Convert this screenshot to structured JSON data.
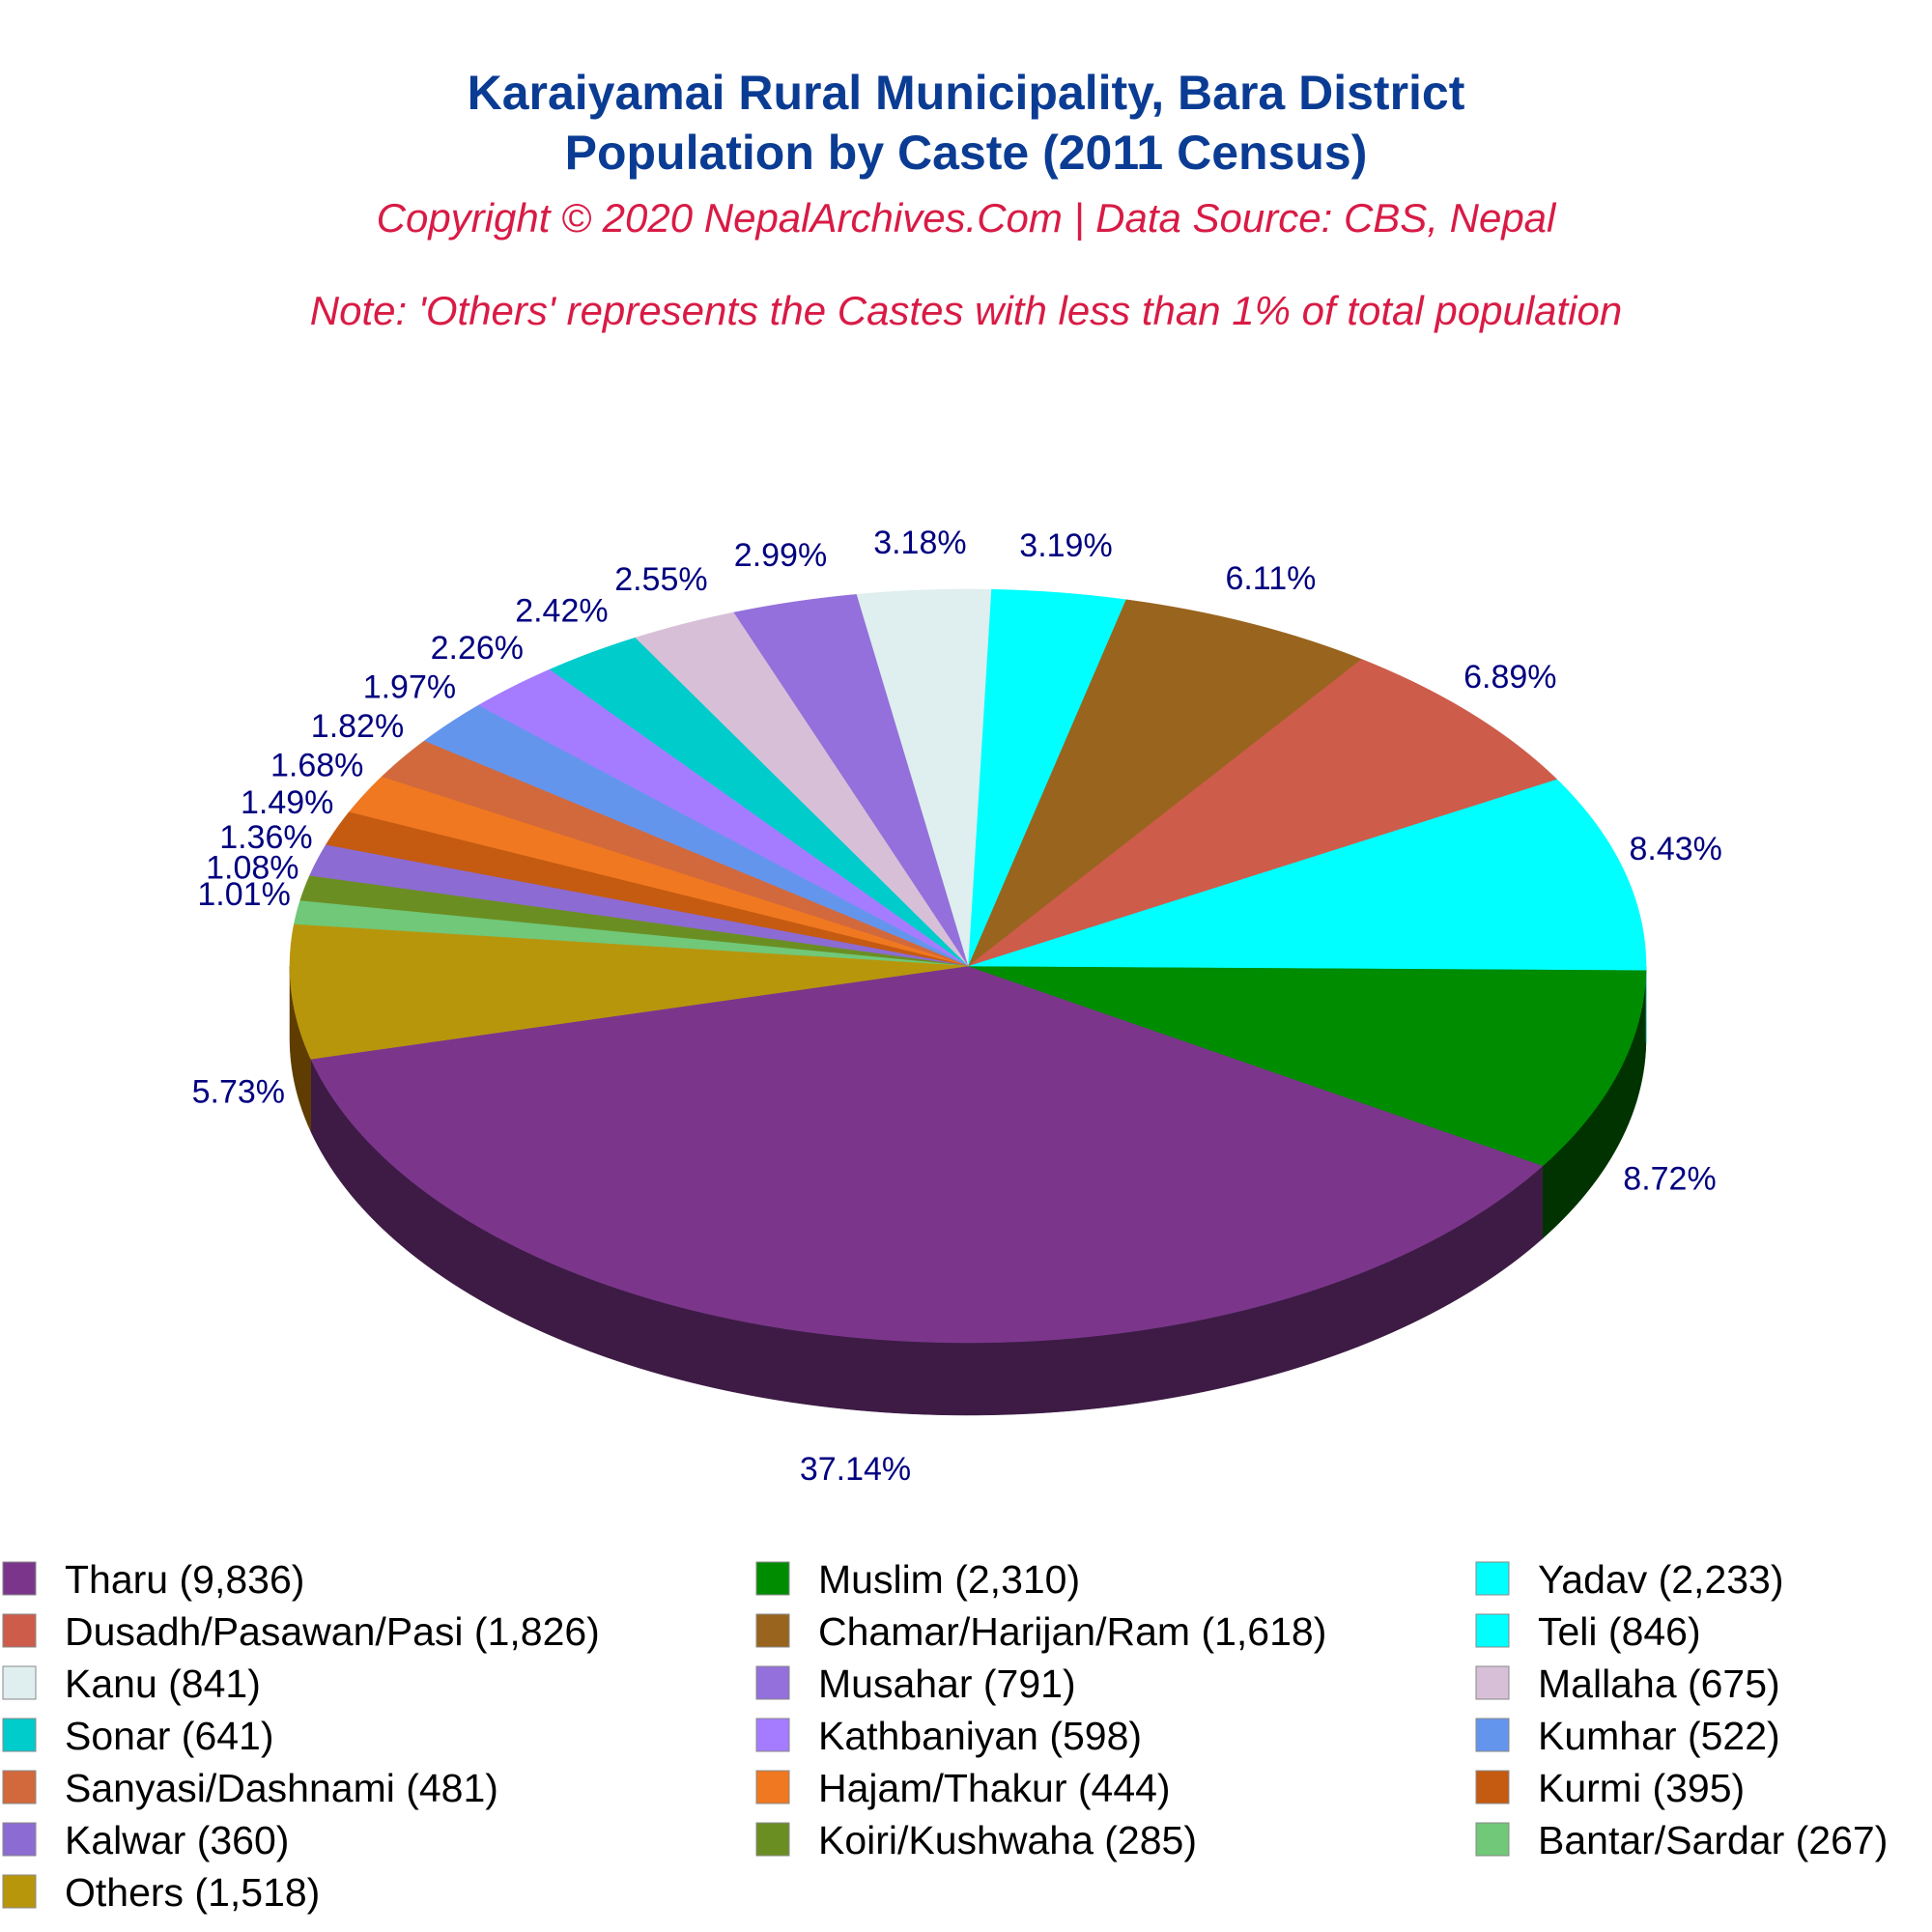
{
  "chart_data": {
    "type": "pie",
    "title": "Karaiyamai Rural Municipality, Bara District",
    "title2": "Population by Caste (2011 Census)",
    "copyright": "Copyright © 2020 NepalArchives.Com | Data Source: CBS, Nepal",
    "note": "Note: 'Others' represents the Castes with less than 1% of total population",
    "slices": [
      {
        "name": "Tharu",
        "value": 9836,
        "legend": "Tharu (9,836)",
        "label": "37.14%",
        "color": "#7b368b",
        "side": "#3d1b45"
      },
      {
        "name": "Muslim",
        "value": 2310,
        "legend": "Muslim (2,310)",
        "label": "8.72%",
        "color": "#008c00",
        "side": "#003300"
      },
      {
        "name": "Yadav",
        "value": 2233,
        "legend": "Yadav (2,233)",
        "label": "8.43%",
        "color": "#00ffff",
        "side": "#00a6a6"
      },
      {
        "name": "Dusadh/Pasawan/Pasi",
        "value": 1826,
        "legend": "Dusadh/Pasawan/Pasi (1,826)",
        "label": "6.89%",
        "color": "#cd5c4a",
        "side": "#730000"
      },
      {
        "name": "Chamar/Harijan/Ram",
        "value": 1618,
        "legend": "Chamar/Harijan/Ram (1,618)",
        "label": "6.11%",
        "color": "#99641e",
        "side": "#460f00"
      },
      {
        "name": "Teli",
        "value": 846,
        "legend": "Teli (846)",
        "label": "3.19%",
        "color": "#00ffff",
        "side": "#00a0aa"
      },
      {
        "name": "Kanu",
        "value": 841,
        "legend": "Kanu (841)",
        "label": "3.18%",
        "color": "#dfeeee",
        "side": "#879594"
      },
      {
        "name": "Musahar",
        "value": 791,
        "legend": "Musahar (791)",
        "label": "2.99%",
        "color": "#9370db",
        "side": "#38177a"
      },
      {
        "name": "Mallaha",
        "value": 675,
        "legend": "Mallaha (675)",
        "label": "2.55%",
        "color": "#d8bfd8",
        "side": "#7f667f"
      },
      {
        "name": "Sonar",
        "value": 641,
        "legend": "Sonar (641)",
        "label": "2.42%",
        "color": "#00cccc",
        "side": "#007373"
      },
      {
        "name": "Kathbaniyan",
        "value": 598,
        "legend": "Kathbaniyan (598)",
        "label": "2.26%",
        "color": "#a57cff",
        "side": "#4c24a6"
      },
      {
        "name": "Kumhar",
        "value": 522,
        "legend": "Kumhar (522)",
        "label": "1.97%",
        "color": "#6495ed",
        "side": "#0b3c94"
      },
      {
        "name": "Sanyasi/Dashnami",
        "value": 481,
        "legend": "Sanyasi/Dashnami (481)",
        "label": "1.82%",
        "color": "#d2693c",
        "side": "#791000"
      },
      {
        "name": "Hajam/Thakur",
        "value": 444,
        "legend": "Hajam/Thakur (444)",
        "label": "1.68%",
        "color": "#f07820",
        "side": "#971f00"
      },
      {
        "name": "Kurmi",
        "value": 395,
        "legend": "Kurmi (395)",
        "label": "1.49%",
        "color": "#c55a11",
        "side": "#6c0100"
      },
      {
        "name": "Kalwar",
        "value": 360,
        "legend": "Kalwar (360)",
        "label": "1.36%",
        "color": "#8c6bd2",
        "side": "#331279"
      },
      {
        "name": "Koiri/Kushwaha",
        "value": 285,
        "legend": "Koiri/Kushwaha (285)",
        "label": "1.08%",
        "color": "#6b8e23",
        "side": "#123500"
      },
      {
        "name": "Bantar/Sardar",
        "value": 267,
        "legend": "Bantar/Sardar (267)",
        "label": "1.01%",
        "color": "#70c878",
        "side": "#176f1f"
      },
      {
        "name": "Others",
        "value": 1518,
        "legend": "Others (1,518)",
        "label": "5.73%",
        "color": "#b8960c",
        "side": "#5f3d00"
      }
    ],
    "legend_placement": "bottom"
  }
}
